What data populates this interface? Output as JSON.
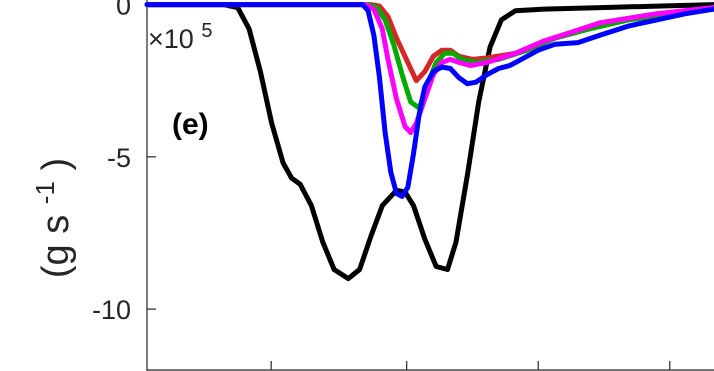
{
  "chart_data": {
    "type": "line",
    "panel_label": "(e)",
    "title": "",
    "xlabel": "",
    "ylabel_main": "(g s",
    "ylabel_sup": "-1",
    "ylabel_close": ")",
    "y_multiplier_base": "×10",
    "y_multiplier_exp": "5",
    "xlim": [
      0,
      1
    ],
    "ylim": [
      -12,
      0.15
    ],
    "x_ticks": [
      0.219,
      0.458,
      0.69,
      0.922
    ],
    "y_ticks": [
      {
        "value": 0,
        "label": "0"
      },
      {
        "value": -5,
        "label": "-5"
      },
      {
        "value": -10,
        "label": "-10"
      }
    ],
    "grid": false,
    "series": [
      {
        "color": "#000000",
        "points": [
          [
            0,
            0
          ],
          [
            0.134,
            0
          ],
          [
            0.16,
            -0.1
          ],
          [
            0.18,
            -0.8
          ],
          [
            0.2,
            -2.2
          ],
          [
            0.22,
            -3.9
          ],
          [
            0.24,
            -5.2
          ],
          [
            0.255,
            -5.7
          ],
          [
            0.27,
            -5.9
          ],
          [
            0.29,
            -6.6
          ],
          [
            0.31,
            -7.8
          ],
          [
            0.33,
            -8.7
          ],
          [
            0.355,
            -9.0
          ],
          [
            0.375,
            -8.7
          ],
          [
            0.395,
            -7.6
          ],
          [
            0.415,
            -6.6
          ],
          [
            0.44,
            -6.1
          ],
          [
            0.455,
            -6.15
          ],
          [
            0.47,
            -6.6
          ],
          [
            0.49,
            -7.7
          ],
          [
            0.51,
            -8.6
          ],
          [
            0.53,
            -8.7
          ],
          [
            0.545,
            -7.8
          ],
          [
            0.565,
            -5.6
          ],
          [
            0.585,
            -3.2
          ],
          [
            0.605,
            -1.4
          ],
          [
            0.625,
            -0.5
          ],
          [
            0.65,
            -0.2
          ],
          [
            0.7,
            -0.15
          ],
          [
            0.8,
            -0.1
          ],
          [
            0.9,
            -0.05
          ],
          [
            1.0,
            0
          ]
        ]
      },
      {
        "color": "#d62728",
        "points": [
          [
            0,
            0
          ],
          [
            0.395,
            0
          ],
          [
            0.41,
            -0.05
          ],
          [
            0.425,
            -0.4
          ],
          [
            0.44,
            -1.1
          ],
          [
            0.46,
            -1.9
          ],
          [
            0.475,
            -2.5
          ],
          [
            0.49,
            -2.2
          ],
          [
            0.505,
            -1.7
          ],
          [
            0.52,
            -1.5
          ],
          [
            0.535,
            -1.5
          ],
          [
            0.55,
            -1.7
          ],
          [
            0.575,
            -1.8
          ],
          [
            0.6,
            -1.75
          ],
          [
            0.65,
            -1.6
          ],
          [
            0.7,
            -1.2
          ],
          [
            0.75,
            -0.9
          ],
          [
            0.8,
            -0.6
          ],
          [
            0.9,
            -0.3
          ],
          [
            1.0,
            -0.1
          ]
        ]
      },
      {
        "color": "#00aa00",
        "points": [
          [
            0,
            0
          ],
          [
            0.39,
            0
          ],
          [
            0.405,
            -0.1
          ],
          [
            0.42,
            -0.5
          ],
          [
            0.435,
            -1.3
          ],
          [
            0.45,
            -2.3
          ],
          [
            0.465,
            -3.2
          ],
          [
            0.48,
            -3.4
          ],
          [
            0.495,
            -2.6
          ],
          [
            0.51,
            -1.9
          ],
          [
            0.525,
            -1.6
          ],
          [
            0.54,
            -1.6
          ],
          [
            0.555,
            -1.8
          ],
          [
            0.58,
            -1.9
          ],
          [
            0.62,
            -1.8
          ],
          [
            0.67,
            -1.5
          ],
          [
            0.72,
            -1.1
          ],
          [
            0.78,
            -0.8
          ],
          [
            0.85,
            -0.5
          ],
          [
            0.95,
            -0.25
          ],
          [
            1.0,
            -0.15
          ]
        ]
      },
      {
        "color": "#ff00ff",
        "points": [
          [
            0,
            0
          ],
          [
            0.385,
            0
          ],
          [
            0.4,
            -0.15
          ],
          [
            0.415,
            -0.8
          ],
          [
            0.425,
            -1.8
          ],
          [
            0.44,
            -3.1
          ],
          [
            0.455,
            -4.0
          ],
          [
            0.465,
            -4.2
          ],
          [
            0.475,
            -3.9
          ],
          [
            0.49,
            -3.1
          ],
          [
            0.505,
            -2.3
          ],
          [
            0.52,
            -1.9
          ],
          [
            0.535,
            -1.8
          ],
          [
            0.55,
            -1.9
          ],
          [
            0.57,
            -2.0
          ],
          [
            0.6,
            -1.9
          ],
          [
            0.65,
            -1.6
          ],
          [
            0.7,
            -1.2
          ],
          [
            0.75,
            -0.9
          ],
          [
            0.8,
            -0.6
          ],
          [
            0.9,
            -0.3
          ],
          [
            1.0,
            -0.1
          ]
        ]
      },
      {
        "color": "#0000ff",
        "points": [
          [
            0,
            0
          ],
          [
            0.38,
            0
          ],
          [
            0.39,
            -0.2
          ],
          [
            0.4,
            -1.0
          ],
          [
            0.41,
            -2.4
          ],
          [
            0.42,
            -4.2
          ],
          [
            0.43,
            -5.5
          ],
          [
            0.44,
            -6.2
          ],
          [
            0.45,
            -6.3
          ],
          [
            0.46,
            -6.0
          ],
          [
            0.47,
            -4.9
          ],
          [
            0.48,
            -3.6
          ],
          [
            0.49,
            -2.7
          ],
          [
            0.505,
            -2.2
          ],
          [
            0.52,
            -2.05
          ],
          [
            0.535,
            -2.1
          ],
          [
            0.55,
            -2.4
          ],
          [
            0.565,
            -2.6
          ],
          [
            0.58,
            -2.55
          ],
          [
            0.6,
            -2.3
          ],
          [
            0.62,
            -2.1
          ],
          [
            0.64,
            -2.0
          ],
          [
            0.66,
            -1.8
          ],
          [
            0.69,
            -1.5
          ],
          [
            0.72,
            -1.3
          ],
          [
            0.76,
            -1.25
          ],
          [
            0.8,
            -1.0
          ],
          [
            0.85,
            -0.7
          ],
          [
            0.9,
            -0.5
          ],
          [
            0.95,
            -0.3
          ],
          [
            1.0,
            -0.15
          ]
        ]
      }
    ]
  }
}
